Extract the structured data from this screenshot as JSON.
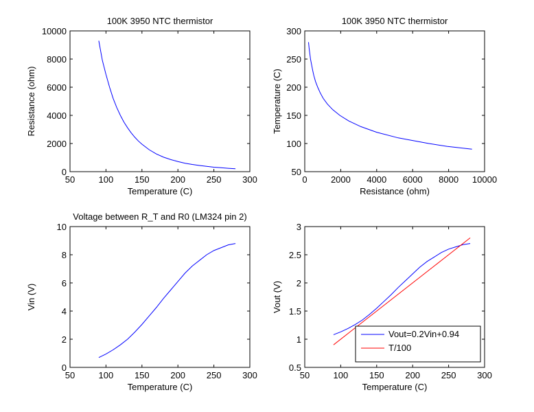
{
  "chart_data": [
    {
      "type": "line",
      "title": "100K 3950 NTC thermistor",
      "xlabel": "Temperature (C)",
      "ylabel": "Resistance (ohm)",
      "xlim": [
        50,
        300
      ],
      "ylim": [
        0,
        10000
      ],
      "xticks": [
        "50",
        "100",
        "150",
        "200",
        "250",
        "300"
      ],
      "yticks": [
        "0",
        "2000",
        "4000",
        "6000",
        "8000",
        "10000"
      ],
      "series": [
        {
          "color": "#0000ff",
          "x": [
            90,
            95,
            100,
            105,
            110,
            115,
            120,
            125,
            130,
            135,
            140,
            145,
            150,
            160,
            170,
            180,
            190,
            200,
            210,
            220,
            230,
            240,
            250,
            260,
            270,
            280
          ],
          "y": [
            9300,
            7900,
            6900,
            6000,
            5200,
            4550,
            4000,
            3520,
            3120,
            2760,
            2450,
            2180,
            1950,
            1560,
            1260,
            1030,
            860,
            720,
            600,
            510,
            440,
            380,
            320,
            280,
            240,
            210
          ]
        }
      ]
    },
    {
      "type": "line",
      "title": "100K 3950 NTC thermistor",
      "xlabel": "Resistance (ohm)",
      "ylabel": "Temperature (C)",
      "xlim": [
        0,
        10000
      ],
      "ylim": [
        50,
        300
      ],
      "xticks": [
        "0",
        "2000",
        "4000",
        "6000",
        "8000",
        "10000"
      ],
      "yticks": [
        "50",
        "100",
        "150",
        "200",
        "250",
        "300"
      ],
      "series": [
        {
          "color": "#0000ff",
          "x": [
            210,
            240,
            280,
            320,
            380,
            440,
            510,
            600,
            720,
            860,
            1030,
            1260,
            1560,
            1950,
            2450,
            3120,
            4000,
            5200,
            6900,
            7900,
            9300
          ],
          "y": [
            280,
            270,
            260,
            250,
            240,
            230,
            220,
            210,
            200,
            190,
            180,
            170,
            160,
            150,
            140,
            130,
            120,
            110,
            100,
            95,
            90
          ]
        }
      ]
    },
    {
      "type": "line",
      "title": "Voltage between R_T and R0 (LM324 pin 2)",
      "xlabel": "Temperature (C)",
      "ylabel": "Vin (V)",
      "xlim": [
        50,
        300
      ],
      "ylim": [
        0,
        10
      ],
      "xticks": [
        "50",
        "100",
        "150",
        "200",
        "250",
        "300"
      ],
      "yticks": [
        "0",
        "2",
        "4",
        "6",
        "8",
        "10"
      ],
      "series": [
        {
          "color": "#0000ff",
          "x": [
            90,
            100,
            110,
            120,
            130,
            140,
            150,
            160,
            170,
            180,
            190,
            200,
            210,
            220,
            230,
            240,
            250,
            260,
            270,
            280
          ],
          "y": [
            0.7,
            0.95,
            1.25,
            1.6,
            2.0,
            2.5,
            3.05,
            3.65,
            4.25,
            4.9,
            5.5,
            6.1,
            6.7,
            7.2,
            7.6,
            8.0,
            8.3,
            8.5,
            8.7,
            8.8
          ]
        }
      ]
    },
    {
      "type": "line",
      "title": "",
      "xlabel": "Temperature (C)",
      "ylabel": "Vout (V)",
      "xlim": [
        50,
        300
      ],
      "ylim": [
        0.5,
        3
      ],
      "xticks": [
        "50",
        "100",
        "150",
        "200",
        "250",
        "300"
      ],
      "yticks": [
        "0.5",
        "1",
        "1.5",
        "2",
        "2.5",
        "3"
      ],
      "legend": "lower-right",
      "series": [
        {
          "name": "Vout=0.2Vin+0.94",
          "color": "#0000ff",
          "x": [
            90,
            100,
            110,
            120,
            130,
            140,
            150,
            160,
            170,
            180,
            190,
            200,
            210,
            220,
            230,
            240,
            250,
            260,
            270,
            280
          ],
          "y": [
            1.08,
            1.13,
            1.19,
            1.26,
            1.34,
            1.44,
            1.55,
            1.67,
            1.79,
            1.92,
            2.04,
            2.16,
            2.28,
            2.38,
            2.46,
            2.54,
            2.6,
            2.64,
            2.68,
            2.7
          ]
        },
        {
          "name": "T/100",
          "color": "#ff0000",
          "x": [
            90,
            280
          ],
          "y": [
            0.9,
            2.8
          ]
        }
      ]
    }
  ]
}
